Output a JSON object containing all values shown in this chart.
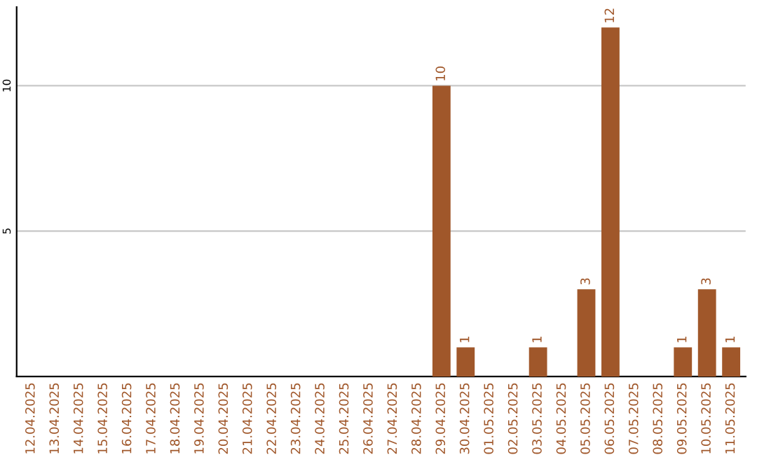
{
  "chart_data": {
    "type": "bar",
    "categories": [
      "12.04.2025",
      "13.04.2025",
      "14.04.2025",
      "15.04.2025",
      "16.04.2025",
      "17.04.2025",
      "18.04.2025",
      "19.04.2025",
      "20.04.2025",
      "21.04.2025",
      "22.04.2025",
      "23.04.2025",
      "24.04.2025",
      "25.04.2025",
      "26.04.2025",
      "27.04.2025",
      "28.04.2025",
      "29.04.2025",
      "30.04.2025",
      "01.05.2025",
      "02.05.2025",
      "03.05.2025",
      "04.05.2025",
      "05.05.2025",
      "06.05.2025",
      "07.05.2025",
      "08.05.2025",
      "09.05.2025",
      "10.05.2025",
      "11.05.2025"
    ],
    "values": [
      0,
      0,
      0,
      0,
      0,
      0,
      0,
      0,
      0,
      0,
      0,
      0,
      0,
      0,
      0,
      0,
      0,
      10,
      1,
      0,
      0,
      1,
      0,
      3,
      12,
      0,
      0,
      1,
      3,
      1
    ],
    "value_labels": [
      null,
      null,
      null,
      null,
      null,
      null,
      null,
      null,
      null,
      null,
      null,
      null,
      null,
      null,
      null,
      null,
      null,
      "10",
      "1",
      null,
      null,
      "1",
      null,
      "3",
      "12",
      null,
      null,
      "1",
      "3",
      "1"
    ],
    "color": "#a0572a",
    "ylim": [
      0,
      12.7
    ],
    "yticks": [
      5,
      10
    ],
    "grid": "y"
  }
}
